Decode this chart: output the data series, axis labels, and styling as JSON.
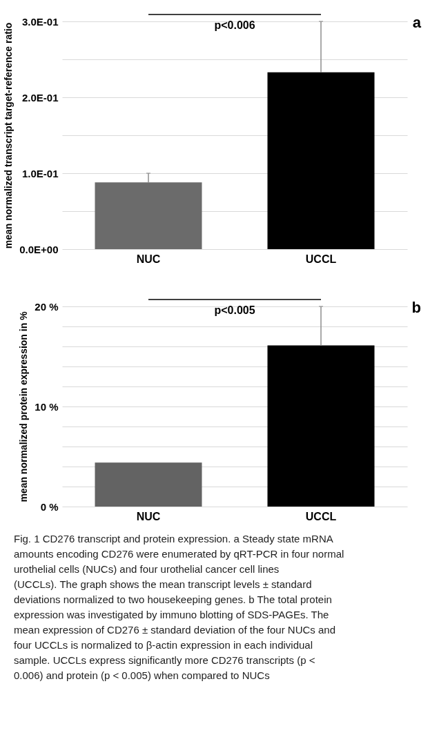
{
  "chart_data": [
    {
      "type": "bar",
      "ylabel": "mean normalized transcript target-reference ratio",
      "categories": [
        "NUC",
        "UCCL"
      ],
      "colors": [
        "#6b6b6b",
        "#000000"
      ],
      "values": [
        0.088,
        0.233
      ],
      "errors": [
        0.012,
        0.067
      ],
      "ylim": [
        0,
        0.3
      ],
      "yticks": [
        {
          "value": 0,
          "label": "0.0E+00"
        },
        {
          "value": 0.05,
          "label": null
        },
        {
          "value": 0.1,
          "label": "1.0E-01"
        },
        {
          "value": 0.15,
          "label": null
        },
        {
          "value": 0.2,
          "label": "2.0E-01"
        },
        {
          "value": 0.25,
          "label": null
        },
        {
          "value": 0.3,
          "label": "3.0E-01"
        }
      ],
      "grid": "y",
      "annotations": [
        "p<0.006",
        "a"
      ]
    },
    {
      "type": "bar",
      "ylabel": "mean normalized protein expression in %",
      "categories": [
        "NUC",
        "UCCL"
      ],
      "colors": [
        "#636363",
        "#000000"
      ],
      "values": [
        4.4,
        16.1
      ],
      "errors": [
        null,
        3.9
      ],
      "ylim": [
        0,
        20
      ],
      "yticks": [
        {
          "value": 0,
          "label": "0 %"
        },
        {
          "value": 2,
          "label": null
        },
        {
          "value": 4,
          "label": null
        },
        {
          "value": 6,
          "label": null
        },
        {
          "value": 8,
          "label": null
        },
        {
          "value": 10,
          "label": "10 %"
        },
        {
          "value": 12,
          "label": null
        },
        {
          "value": 14,
          "label": null
        },
        {
          "value": 16,
          "label": null
        },
        {
          "value": 18,
          "label": null
        },
        {
          "value": 20,
          "label": "20 %"
        }
      ],
      "grid": "y",
      "annotations": [
        "p<0.005",
        "b",
        "Fig. 1  CD276 transcript and protein expression. a Steady state mRNA amounts encoding CD276 were enumerated by qRT-PCR in four normal urothelial cells (NUCs) and four urothelial cancer cell lines (UCCLs). The graph shows the mean transcript levels ± standard deviations normalized to two housekeeping genes. b The total protein expression was investigated by immuno blotting of SDS-PAGEs. The mean expression of CD276 ± standard deviation of the four NUCs and four UCCLs is normalized to β-actin expression in each individual sample. UCCLs express significantly more CD276 transcripts (p < 0.006) and protein (p < 0.005) when compared to NUCs"
      ]
    }
  ]
}
